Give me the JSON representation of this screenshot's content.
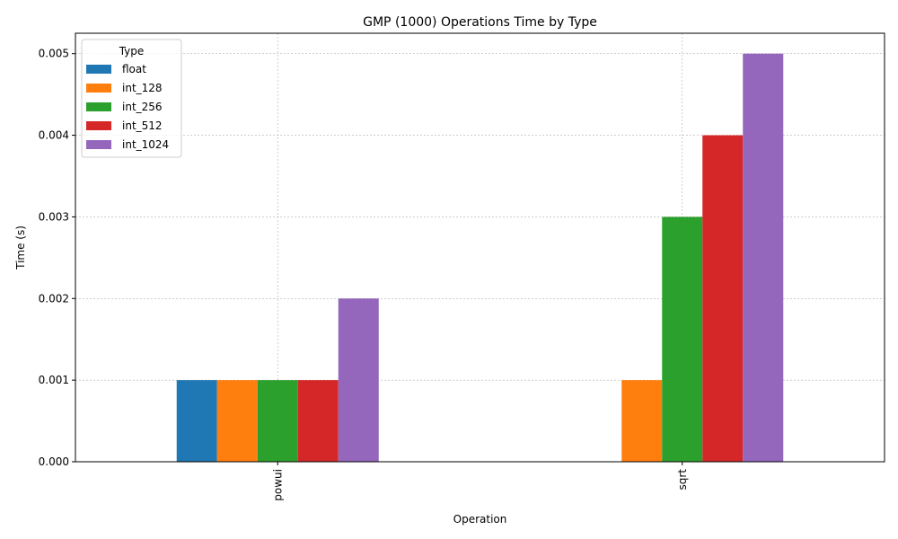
{
  "chart_data": {
    "type": "bar",
    "title": "GMP (1000) Operations Time by Type",
    "xlabel": "Operation",
    "ylabel": "Time (s)",
    "categories": [
      "powui",
      "sqrt"
    ],
    "ylim": [
      0,
      0.00525
    ],
    "yticks": [
      "0.000",
      "0.001",
      "0.002",
      "0.003",
      "0.004",
      "0.005"
    ],
    "grid": true,
    "legend": {
      "title": "Type",
      "placement": "top-left"
    },
    "series": [
      {
        "name": "float",
        "color": "#1f77b4",
        "values": [
          0.001,
          0
        ]
      },
      {
        "name": "int_128",
        "color": "#ff7f0e",
        "values": [
          0.001,
          0.001
        ]
      },
      {
        "name": "int_256",
        "color": "#2ca02c",
        "values": [
          0.001,
          0.003
        ]
      },
      {
        "name": "int_512",
        "color": "#d62728",
        "values": [
          0.001,
          0.004
        ]
      },
      {
        "name": "int_1024",
        "color": "#9467bd",
        "values": [
          0.002,
          0.005
        ]
      }
    ]
  }
}
